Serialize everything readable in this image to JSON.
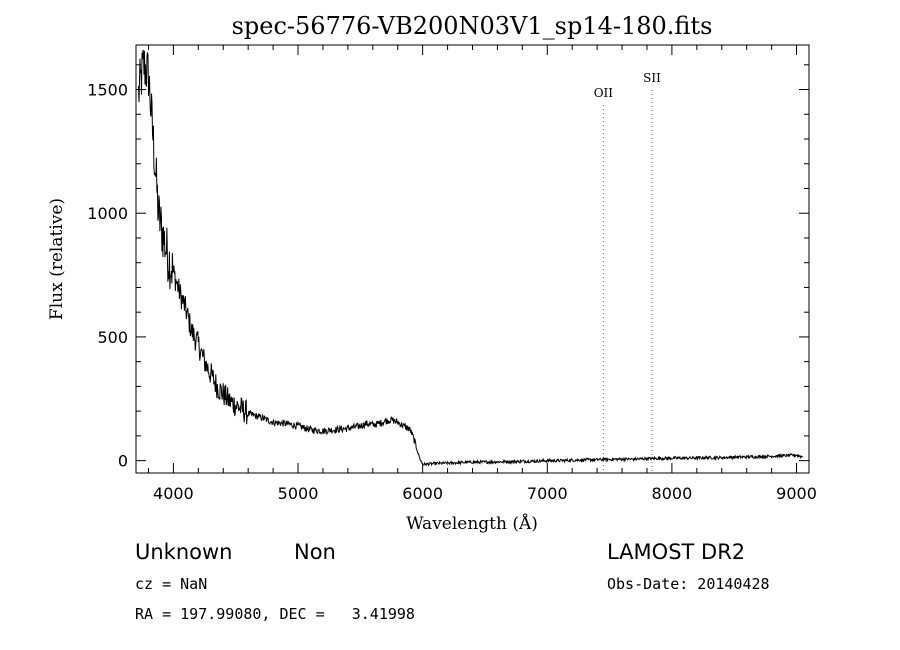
{
  "chart_data": {
    "type": "line",
    "title": "spec-56776-VB200N03V1_sp14-180.fits",
    "xlabel": "Wavelength (Å)",
    "ylabel": "Flux (relative)",
    "xlim": [
      3700,
      9100
    ],
    "ylim": [
      -50,
      1680
    ],
    "x_ticks": [
      4000,
      5000,
      6000,
      7000,
      8000,
      9000
    ],
    "y_ticks": [
      0,
      500,
      1000,
      1500
    ],
    "grid": false,
    "series": [
      {
        "x": [
          3720,
          3760,
          3800,
          3830,
          3860,
          3880,
          3900,
          3930,
          3960,
          4000,
          4050,
          4100,
          4150,
          4200,
          4250,
          4300,
          4350,
          4400,
          4450,
          4500,
          4600,
          4700,
          4800,
          4900,
          5000,
          5100,
          5200,
          5300,
          5400,
          5500,
          5550,
          5600,
          5650,
          5700,
          5750,
          5800,
          5850,
          5900,
          5920,
          5940,
          5960,
          5980,
          6000,
          6100,
          6200,
          6300,
          6400,
          6500,
          6600,
          6700,
          6800,
          6900,
          7000,
          7100,
          7200,
          7300,
          7400,
          7500,
          7600,
          7700,
          7800,
          7900,
          8000,
          8100,
          8200,
          8300,
          8400,
          8500,
          8600,
          8700,
          8800,
          8900,
          9000,
          9050
        ],
        "y": [
          1480,
          1600,
          1560,
          1350,
          1150,
          1000,
          950,
          880,
          820,
          760,
          680,
          610,
          520,
          470,
          400,
          350,
          300,
          270,
          240,
          225,
          190,
          175,
          155,
          150,
          140,
          125,
          120,
          125,
          130,
          140,
          150,
          145,
          150,
          160,
          165,
          155,
          140,
          125,
          100,
          70,
          35,
          5,
          -15,
          -12,
          -10,
          -8,
          -6,
          -6,
          -5,
          -4,
          -3,
          -2,
          0,
          0,
          2,
          3,
          4,
          5,
          6,
          6,
          8,
          9,
          10,
          10,
          11,
          12,
          12,
          14,
          15,
          16,
          18,
          20,
          22,
          15
        ]
      }
    ],
    "annotations": [
      {
        "label": "OII",
        "x": 7450
      },
      {
        "label": "SII",
        "x": 7840
      }
    ]
  },
  "info": {
    "classification": "Unknown",
    "subclass": "Non",
    "survey": "LAMOST DR2",
    "redshift": "cz = NaN",
    "obs_date": "Obs-Date: 20140428",
    "coords": "RA = 197.99080, DEC =   3.41998"
  }
}
